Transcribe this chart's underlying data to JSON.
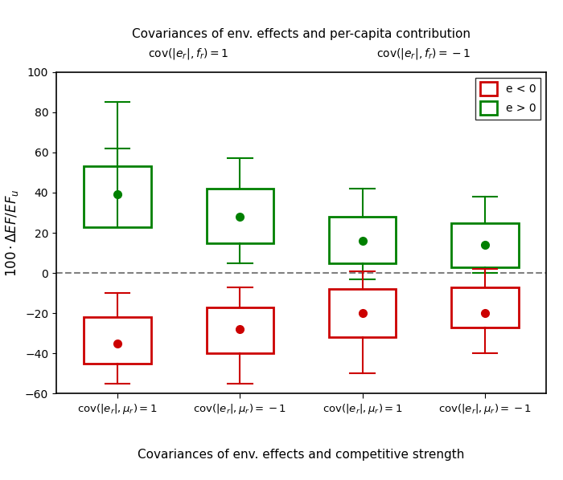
{
  "title_line1": "Covariances of env. effects and per-capita contribution",
  "subtitle_left": "cov(|e_r|, f_r) = 1",
  "subtitle_right": "cov(|e_r|, f_r) = -1",
  "xlabel_bottom": "Covariances of env. effects and competitive strength",
  "ylabel": "100 · ΔEF/EF_u",
  "ylim": [
    -60,
    100
  ],
  "yticks": [
    -60,
    -40,
    -20,
    0,
    20,
    40,
    60,
    80,
    100
  ],
  "xtick_positions": [
    1,
    2,
    3,
    4
  ],
  "xtick_labels": [
    "cov(|e_r|, μ_r) = 1",
    "cov(|e_r|, μ_r) = −1",
    "cov(|e_r|, μ_r) = 1",
    "cov(|e_r|, μ_r) = −1"
  ],
  "groups": [
    {
      "x": 1,
      "green": {
        "median": 39,
        "q1": 23,
        "q3": 53,
        "whisker_low": 62,
        "whisker_high": 85
      },
      "red": {
        "median": -35,
        "q1": -45,
        "q3": -22,
        "whisker_low": -55,
        "whisker_high": -10
      }
    },
    {
      "x": 2,
      "green": {
        "median": 28,
        "q1": 15,
        "q3": 42,
        "whisker_low": 5,
        "whisker_high": 57
      },
      "red": {
        "median": -28,
        "q1": -40,
        "q3": -17,
        "whisker_low": -55,
        "whisker_high": -7
      }
    },
    {
      "x": 3,
      "green": {
        "median": 16,
        "q1": 5,
        "q3": 28,
        "whisker_low": -3,
        "whisker_high": 42
      },
      "red": {
        "median": -20,
        "q1": -32,
        "q3": -8,
        "whisker_low": -50,
        "whisker_high": 1
      }
    },
    {
      "x": 4,
      "green": {
        "median": 14,
        "q1": 3,
        "q3": 25,
        "whisker_low": 0,
        "whisker_high": 38
      },
      "red": {
        "median": -20,
        "q1": -27,
        "q3": -7,
        "whisker_low": -40,
        "whisker_high": 2
      }
    }
  ],
  "green_color": "#008000",
  "red_color": "#cc0000",
  "box_width": 0.55,
  "xlim": [
    0.5,
    4.5
  ]
}
